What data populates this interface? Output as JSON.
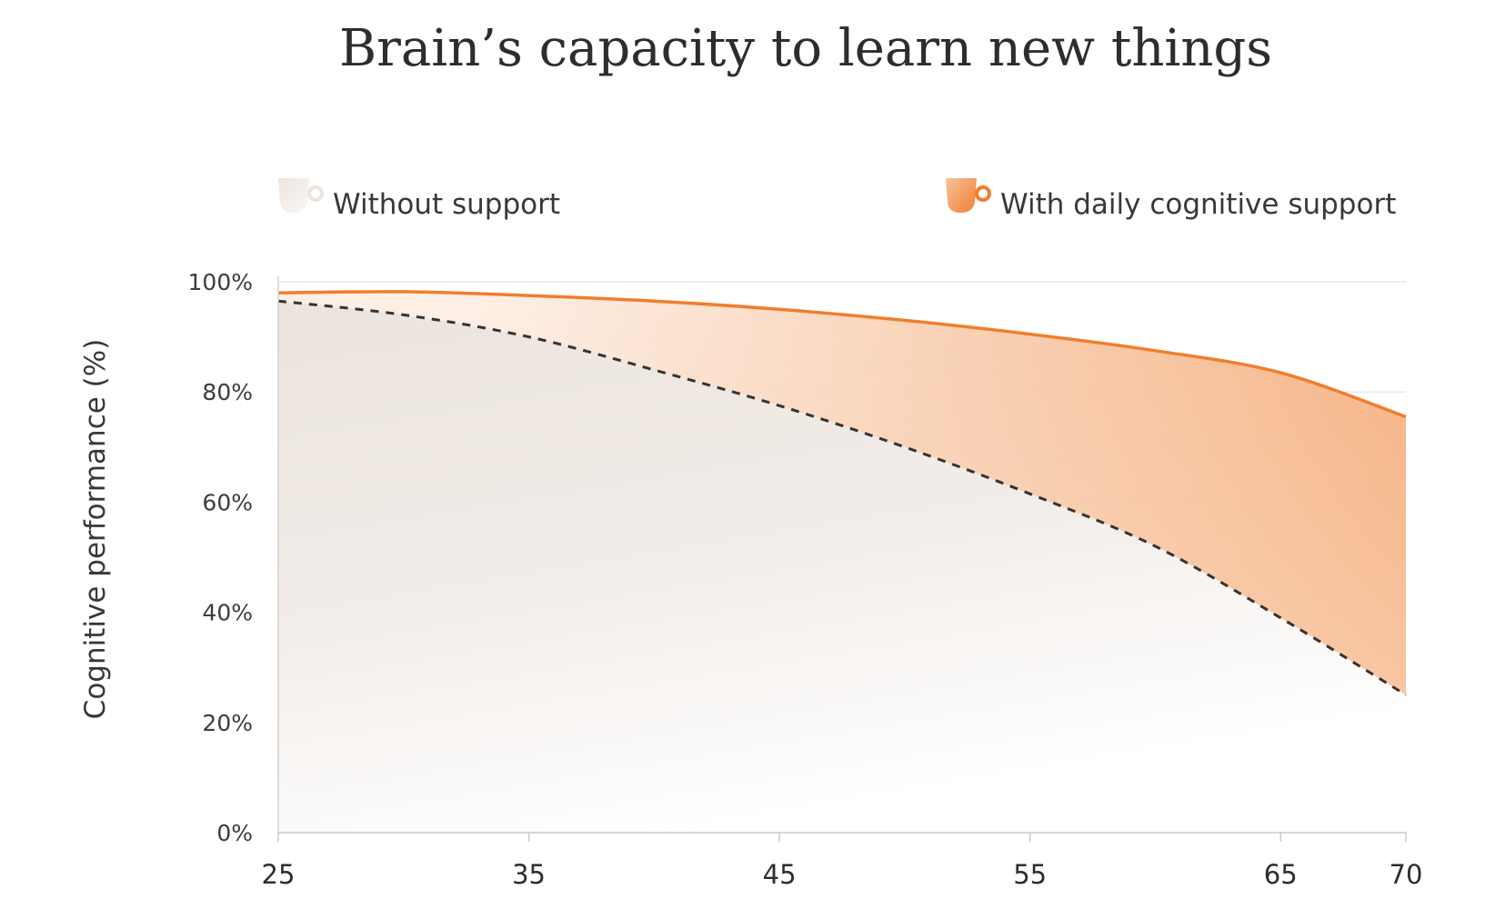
{
  "chart_data": {
    "type": "area",
    "title": "Brain’s capacity to learn new things",
    "ylabel": "Cognitive performance (%)",
    "xlabel": "",
    "x": [
      25,
      30,
      35,
      40,
      45,
      50,
      55,
      60,
      65,
      70
    ],
    "xticks": [
      "25",
      "35",
      "45",
      "55",
      "65",
      "70"
    ],
    "xtick_values": [
      25,
      35,
      45,
      55,
      65,
      70
    ],
    "yticks": [
      "0%",
      "20%",
      "40%",
      "60%",
      "80%",
      "100%"
    ],
    "ytick_values": [
      0,
      20,
      40,
      60,
      80,
      100
    ],
    "xlim": [
      25,
      70
    ],
    "ylim": [
      0,
      100
    ],
    "grid": true,
    "legend_placement": "top",
    "series": [
      {
        "name": "Without support",
        "style": "dashed",
        "color": "#333333",
        "values": [
          96.5,
          94,
          90,
          84,
          77.5,
          70,
          61.5,
          52,
          39,
          25
        ]
      },
      {
        "name": "With daily cognitive support",
        "style": "solid",
        "color": "#f07e2e",
        "values": [
          98,
          98.2,
          97.5,
          96.5,
          95,
          93,
          90.5,
          87.5,
          83.5,
          75.5
        ]
      }
    ],
    "colors": {
      "orange": "#f07e2e",
      "fill_orange": "#f4a670",
      "fill_beige": "#efe7e1",
      "gridline": "#e6e2df",
      "dashed": "#333333"
    },
    "legend_icons": [
      "cup-icon",
      "cup-icon"
    ]
  }
}
